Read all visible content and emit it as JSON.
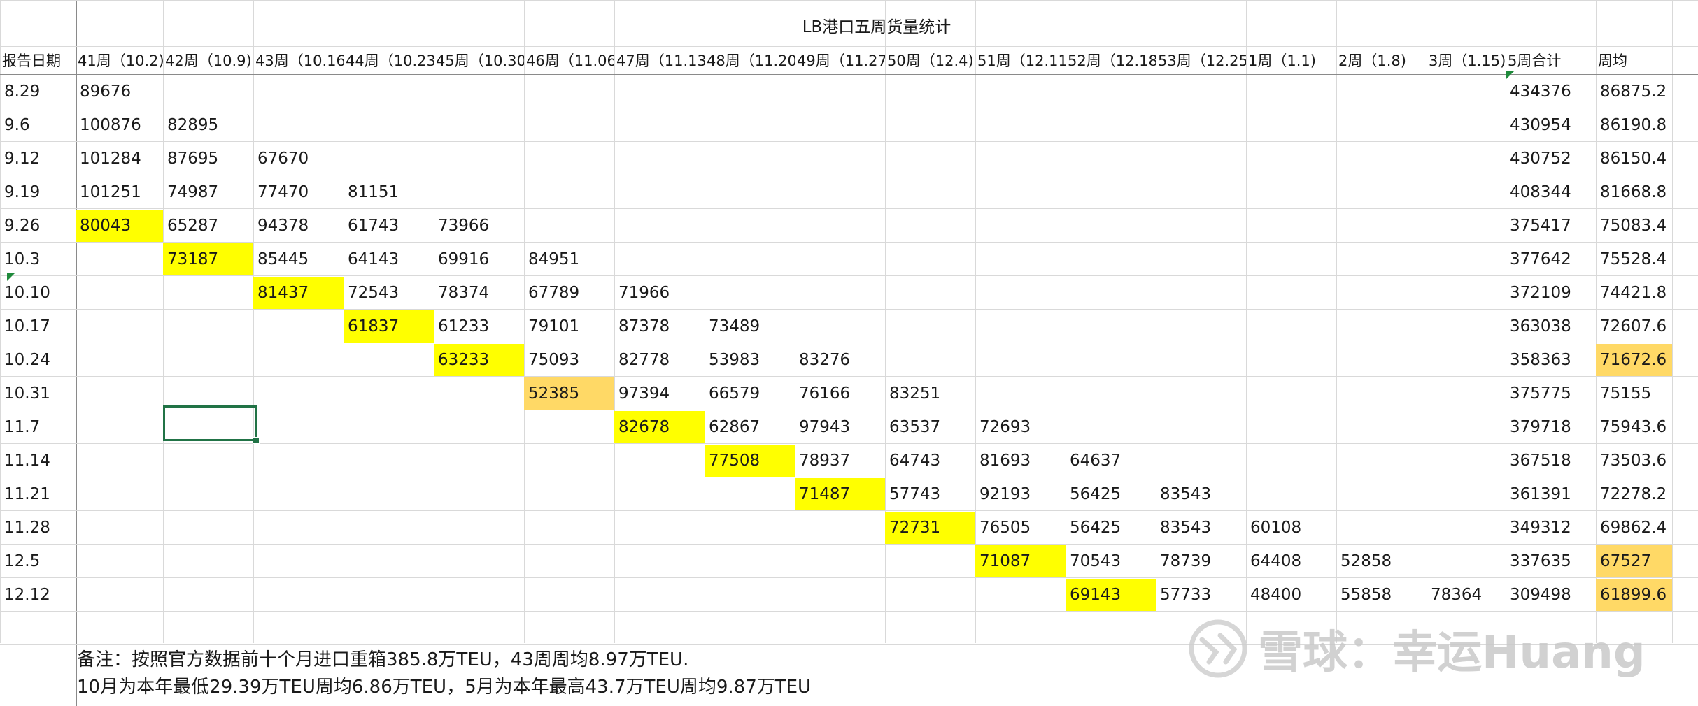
{
  "title": "LB港口五周货量统计",
  "headers": [
    "报告日期",
    "41周（10.2)",
    "42周（10.9)",
    "43周（10.16)",
    "44周（10.23)",
    "45周（10.30)",
    "46周（11.06)",
    "47周（11.13)",
    "48周（11.20)",
    "49周（11.27)",
    "50周（12.4)",
    "51周（12.11)",
    "52周（12.18)",
    "53周（12.25)",
    "1周（1.1)",
    "2周（1.8)",
    "3周（1.15)",
    "5周合计",
    "周均"
  ],
  "rows": [
    {
      "date": "8.29",
      "cells": {
        "1": "89676"
      },
      "sum": "434376",
      "avg": "86875.2"
    },
    {
      "date": "9.6",
      "cells": {
        "1": "100876",
        "2": "82895"
      },
      "sum": "430954",
      "avg": "86190.8"
    },
    {
      "date": "9.12",
      "cells": {
        "1": "101284",
        "2": "87695",
        "3": "67670"
      },
      "sum": "430752",
      "avg": "86150.4"
    },
    {
      "date": "9.19",
      "cells": {
        "1": "101251",
        "2": "74987",
        "3": "77470",
        "4": "81151"
      },
      "sum": "408344",
      "avg": "81668.8"
    },
    {
      "date": "9.26",
      "cells": {
        "1": "80043",
        "2": "65287",
        "3": "94378",
        "4": "61743",
        "5": "73966"
      },
      "sum": "375417",
      "avg": "75083.4",
      "hl": {
        "1": "yellow"
      }
    },
    {
      "date": "10.3",
      "cells": {
        "2": "73187",
        "3": "85445",
        "4": "64143",
        "5": "69916",
        "6": "84951"
      },
      "sum": "377642",
      "avg": "75528.4",
      "hl": {
        "2": "yellow"
      }
    },
    {
      "date": "10.10",
      "cells": {
        "3": "81437",
        "4": "72543",
        "5": "78374",
        "6": "67789",
        "7": "71966"
      },
      "sum": "372109",
      "avg": "74421.8",
      "hl": {
        "3": "yellow"
      }
    },
    {
      "date": "10.17",
      "cells": {
        "4": "61837",
        "5": "61233",
        "6": "79101",
        "7": "87378",
        "8": "73489"
      },
      "sum": "363038",
      "avg": "72607.6",
      "hl": {
        "4": "yellow"
      }
    },
    {
      "date": "10.24",
      "cells": {
        "5": "63233",
        "6": "75093",
        "7": "82778",
        "8": "53983",
        "9": "83276"
      },
      "sum": "358363",
      "avg": "71672.6",
      "hl": {
        "5": "yellow",
        "18": "orange"
      }
    },
    {
      "date": "10.31",
      "cells": {
        "6": "52385",
        "7": "97394",
        "8": "66579",
        "9": "76166",
        "10": "83251"
      },
      "sum": "375775",
      "avg": "75155",
      "hl": {
        "6": "orange"
      }
    },
    {
      "date": "11.7",
      "cells": {
        "7": "82678",
        "8": "62867",
        "9": "97943",
        "10": "63537",
        "11": "72693"
      },
      "sum": "379718",
      "avg": "75943.6",
      "hl": {
        "7": "yellow"
      }
    },
    {
      "date": "11.14",
      "cells": {
        "8": "77508",
        "9": "78937",
        "10": "64743",
        "11": "81693",
        "12": "64637"
      },
      "sum": "367518",
      "avg": "73503.6",
      "hl": {
        "8": "yellow"
      }
    },
    {
      "date": "11.21",
      "cells": {
        "9": "71487",
        "10": "57743",
        "11": "92193",
        "12": "56425",
        "13": "83543"
      },
      "sum": "361391",
      "avg": "72278.2",
      "hl": {
        "9": "yellow"
      }
    },
    {
      "date": "11.28",
      "cells": {
        "10": "72731",
        "11": "76505",
        "12": "56425",
        "13": "83543",
        "14": "60108"
      },
      "sum": "349312",
      "avg": "69862.4",
      "hl": {
        "10": "yellow"
      }
    },
    {
      "date": "12.5",
      "cells": {
        "11": "71087",
        "12": "70543",
        "13": "78739",
        "14": "64408",
        "15": "52858"
      },
      "sum": "337635",
      "avg": "67527",
      "hl": {
        "11": "yellow",
        "18": "orange"
      }
    },
    {
      "date": "12.12",
      "cells": {
        "12": "69143",
        "13": "57733",
        "14": "48400",
        "15": "55858",
        "16": "78364"
      },
      "sum": "309498",
      "avg": "61899.6",
      "hl": {
        "12": "yellow",
        "18": "orange"
      }
    }
  ],
  "notes": [
    "备注：按照官方数据前十个月进口重箱385.8万TEU，43周周均8.97万TEU.",
    "10月为本年最低29.39万TEU周均6.86万TEU，5月为本年最高43.7万TEU周均9.87万TEU"
  ],
  "watermark": "雪球：幸运Huang",
  "colors": {
    "yellow": "#ffff00",
    "orange": "#ffd966",
    "grid": "#d9d9d9",
    "selection": "#217346"
  }
}
